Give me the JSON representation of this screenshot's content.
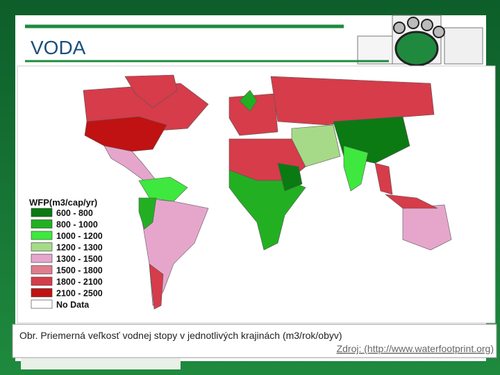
{
  "header": {
    "title": "VODA"
  },
  "map": {
    "legend": {
      "title": "WFP(m3/cap/yr)",
      "entries": [
        {
          "label": "600 - 800",
          "color": "#0b7a12"
        },
        {
          "label": "800 - 1000",
          "color": "#22b022"
        },
        {
          "label": "1000 - 1200",
          "color": "#3ee83e"
        },
        {
          "label": "1200 - 1300",
          "color": "#a6da88"
        },
        {
          "label": "1300 - 1500",
          "color": "#e6a6cc"
        },
        {
          "label": "1500 - 1800",
          "color": "#e07c8c"
        },
        {
          "label": "1800 - 2100",
          "color": "#d63c4a"
        },
        {
          "label": "2100 - 2500",
          "color": "#c01212"
        },
        {
          "label": "No Data",
          "color": "#ffffff"
        }
      ]
    }
  },
  "caption": {
    "text": "Obr. Priemerná veľkosť vodnej stopy v jednotlivých krajinách (m3/rok/obyv)",
    "source": "Zdroj: (http://www.waterfootprint.org)"
  }
}
